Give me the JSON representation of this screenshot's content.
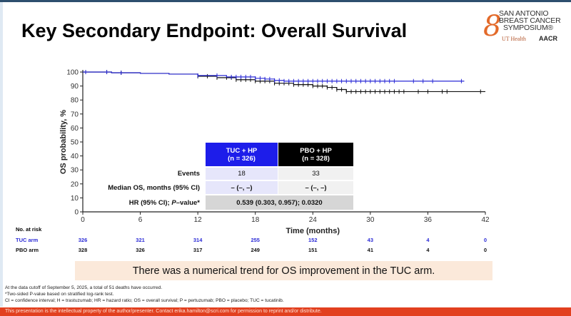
{
  "title": "Key Secondary Endpoint: Overall Survival",
  "logo": {
    "line1": "SAN ANTONIO",
    "line2": "BREAST CANCER",
    "line3": "SYMPOSIUM®",
    "partner1": "UT Health",
    "partner2": "AACR"
  },
  "chart_data": {
    "type": "line",
    "subtype": "kaplan-meier",
    "xlabel": "Time (months)",
    "ylabel": "OS probability, %",
    "xlim": [
      0,
      42
    ],
    "ylim": [
      0,
      100
    ],
    "xticks": [
      0,
      6,
      12,
      18,
      24,
      30,
      36,
      42
    ],
    "yticks": [
      0,
      10,
      20,
      30,
      40,
      50,
      60,
      70,
      80,
      90,
      100
    ],
    "series": [
      {
        "name": "TUC arm",
        "color": "#2b2bd6",
        "steps": [
          [
            0,
            100
          ],
          [
            3,
            99.5
          ],
          [
            6,
            99
          ],
          [
            9,
            98.5
          ],
          [
            12,
            97.5
          ],
          [
            15,
            96.5
          ],
          [
            18,
            95.5
          ],
          [
            19,
            95
          ],
          [
            20,
            94
          ],
          [
            21,
            93.5
          ],
          [
            39.8,
            93.5
          ]
        ],
        "censor_times": [
          0.3,
          2.5,
          4,
          12,
          14,
          15.5,
          16,
          16.5,
          17,
          17.5,
          18,
          18.5,
          19,
          19.5,
          20,
          20.5,
          21,
          21.5,
          22,
          22.5,
          23,
          23.5,
          24,
          24.5,
          25,
          25.5,
          26,
          26.5,
          27,
          27.5,
          28,
          28.5,
          29,
          29.5,
          30,
          30.5,
          31,
          31.5,
          32,
          32.5,
          34.5,
          35.5,
          36.5,
          39.5
        ]
      },
      {
        "name": "PBO arm",
        "color": "#111111",
        "steps": [
          [
            0,
            100
          ],
          [
            3,
            99.5
          ],
          [
            6,
            99
          ],
          [
            9,
            98.5
          ],
          [
            12,
            97
          ],
          [
            14,
            96
          ],
          [
            16,
            94.5
          ],
          [
            18,
            93.5
          ],
          [
            20,
            92
          ],
          [
            22,
            91
          ],
          [
            24,
            90
          ],
          [
            25.5,
            89
          ],
          [
            26.5,
            87.5
          ],
          [
            27.5,
            86
          ],
          [
            42,
            86
          ]
        ],
        "censor_times": [
          0.3,
          2.5,
          4,
          12,
          13,
          14,
          15,
          15.5,
          16,
          16.5,
          17,
          17.5,
          18,
          18.5,
          19,
          19.5,
          20,
          20.5,
          21,
          21.5,
          22,
          22.5,
          23,
          23.5,
          24,
          24.5,
          25,
          25.5,
          26,
          26.5,
          27,
          27.5,
          28,
          28.5,
          29,
          29.5,
          30,
          30.5,
          31,
          31.5,
          32,
          32.5,
          33,
          33.5,
          35,
          36,
          37.5,
          38,
          41.5
        ]
      }
    ]
  },
  "table": {
    "headers": [
      {
        "line1": "TUC + HP",
        "line2": "(n = 326)"
      },
      {
        "line1": "PBO + HP",
        "line2": "(n = 328)"
      }
    ],
    "rows": [
      {
        "label": "Events",
        "tuc": "18",
        "pbo": "33"
      },
      {
        "label": "Median OS, months (95% CI)",
        "tuc": "– (–, –)",
        "pbo": "– (–, –)"
      }
    ],
    "hr_label": "HR (95% CI); ",
    "hr_label_italic": "P",
    "hr_label_end": "–value*",
    "hr_value": "0.539 (0.303, 0.957); 0.0320"
  },
  "risk": {
    "title": "No. at risk",
    "arms": [
      {
        "label": "TUC arm",
        "color": "#2b2bd6",
        "values": [
          "326",
          "321",
          "314",
          "255",
          "152",
          "43",
          "4",
          "0"
        ]
      },
      {
        "label": "PBO arm",
        "color": "#111111",
        "values": [
          "328",
          "326",
          "317",
          "249",
          "151",
          "41",
          "4",
          "0"
        ]
      }
    ]
  },
  "banner": "There was a numerical trend for OS improvement in the TUC arm.",
  "footnotes": [
    "At the data cutoff of September 5, 2025, a total of 51 deaths have occurred.",
    "*Two-sided P-value based on stratified log-rank test.",
    "CI = confidence interval; H = trastuzumab; HR = hazard ratio; OS = overall survival; P = pertuzumab; PBO = placebo; TUC = tucatinib."
  ],
  "footer": "This presentation is the intellectual property of the author/presenter. Contact erika.hamilton@scri.com for permission to reprint and/or distribute."
}
